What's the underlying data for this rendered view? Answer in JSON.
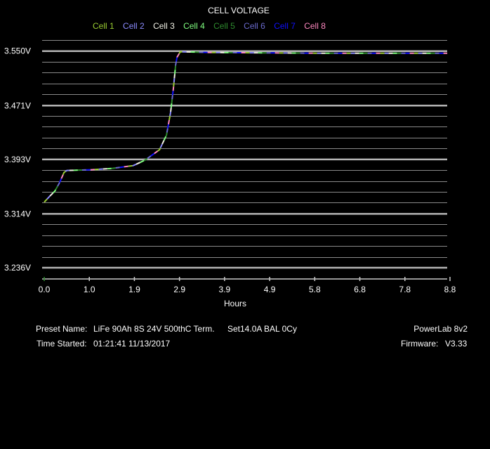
{
  "chart_data": {
    "type": "line",
    "title": "CELL VOLTAGE",
    "xlabel": "Hours",
    "ylabel": "",
    "xlim": [
      0,
      8.8
    ],
    "ylim": [
      3.236,
      3.566
    ],
    "x_ticks": [
      "0.0",
      "1.0",
      "1.9",
      "2.9",
      "3.9",
      "4.9",
      "5.8",
      "6.8",
      "7.8",
      "8.8"
    ],
    "y_ticks": [
      {
        "label": "3.550V",
        "value": 3.55
      },
      {
        "label": "3.471V",
        "value": 3.471
      },
      {
        "label": "3.393V",
        "value": 3.393
      },
      {
        "label": "3.314V",
        "value": 3.314
      },
      {
        "label": "3.236V",
        "value": 3.236
      }
    ],
    "grid": true,
    "legend": "top",
    "x": [
      0,
      0.11,
      0.23,
      0.33,
      0.43,
      0.49,
      1.02,
      1.48,
      1.93,
      2.19,
      2.5,
      2.65,
      2.74,
      2.8,
      2.85,
      2.88,
      2.95,
      3.61,
      5.89,
      8.74
    ],
    "y": [
      3.331,
      3.339,
      3.347,
      3.359,
      3.374,
      3.377,
      3.378,
      3.38,
      3.384,
      3.392,
      3.407,
      3.428,
      3.461,
      3.495,
      3.53,
      3.541,
      3.549,
      3.548,
      3.547,
      3.547
    ],
    "series": [
      {
        "name": "Cell 1",
        "color": "#9acd32"
      },
      {
        "name": "Cell 2",
        "color": "#8c8cff"
      },
      {
        "name": "Cell 3",
        "color": "#f2f2e6"
      },
      {
        "name": "Cell 4",
        "color": "#80ff80"
      },
      {
        "name": "Cell 5",
        "color": "#2e8b2e"
      },
      {
        "name": "Cell 6",
        "color": "#6a6acd"
      },
      {
        "name": "Cell 7",
        "color": "#1010ff"
      },
      {
        "name": "Cell 8",
        "color": "#ff88c0"
      }
    ]
  },
  "info": {
    "preset_label": "Preset Name:",
    "preset_value": "LiFe 90Ah 8S 24V 500thC Term.",
    "preset_extra": "Set14.0A BAL 0Cy",
    "time_label": "Time Started:",
    "time_value": "01:21:41  11/13/2017",
    "device": "PowerLab 8v2",
    "firmware_label": "Firmware:",
    "firmware_value": "V3.33"
  }
}
